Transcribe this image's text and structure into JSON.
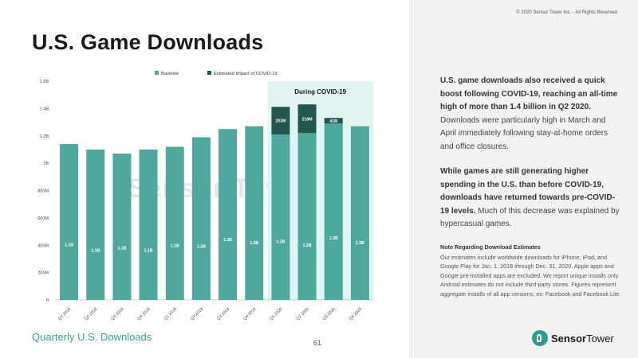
{
  "header": {
    "title": "U.S. Game Downloads",
    "copyright": "© 2020 Sensor Tower Inc. - All Rights Reserved"
  },
  "footer": {
    "label": "Quarterly U.S. Downloads",
    "page_number": "61"
  },
  "panel": {
    "p1_bold": "U.S. game downloads also received a quick boost following COVID-19, reaching an all-time high of more than 1.4 billion in Q2 2020.",
    "p1_rest": " Downloads were particularly high in March and April immediately following stay-at-home orders and office closures.",
    "p2_bold": "While games are still generating higher spending in the U.S. than before COVID-19, downloads have returned towards pre-COVID-19 levels.",
    "p2_rest": " Much of this decrease was explained by hypercasual games.",
    "note_title": "Note Regarding Download Estimates",
    "note_body": "Our estimates include worldwide downloads for iPhone, iPad, and Google Play for Jan. 1, 2018 through Dec. 31, 2020. Apple apps and Google pre-installed apps are excluded. We report unique installs only. Android estimates do not include third-party stores. Figures represent aggregate installs of all app versions, ex: Facebook and Facebook Lite."
  },
  "logo": {
    "brand_a": "Sensor",
    "brand_b": "Tower"
  },
  "chart_data": {
    "type": "bar",
    "stacked": true,
    "categories": [
      "Q1 2018",
      "Q2 2018",
      "Q3 2018",
      "Q4 2018",
      "Q1 2019",
      "Q2 2019",
      "Q3 2019",
      "Q4 2019",
      "Q1 2020",
      "Q2 2020",
      "Q3 2020",
      "Q4 2020"
    ],
    "series": [
      {
        "name": "Baseline",
        "color": "#4ea89d",
        "values": [
          1.14,
          1.1,
          1.07,
          1.1,
          1.12,
          1.19,
          1.25,
          1.27,
          1.21,
          1.22,
          1.29,
          1.27
        ],
        "labels": [
          "1.1B",
          "1.1B",
          "1.1B",
          "1.1B",
          "1.1B",
          "1.2B",
          "1.3B",
          "1.3B",
          "1.2B",
          "1.2B",
          "1.3B",
          "1.3B"
        ]
      },
      {
        "name": "Estimated Impact of COVID-19",
        "color": "#23564f",
        "values": [
          0,
          0,
          0,
          0,
          0,
          0,
          0,
          0,
          0.202,
          0.21,
          0.041,
          0
        ],
        "labels": [
          "",
          "",
          "",
          "",
          "",
          "",
          "",
          "",
          "202M",
          "210M",
          "41M",
          ""
        ]
      }
    ],
    "yticks": [
      "0",
      "200M",
      "400M",
      "600M",
      "800M",
      "1B",
      "1.2B",
      "1.4B",
      "1.6B"
    ],
    "ylim": [
      0,
      1.6
    ],
    "highlight": {
      "label": "During COVID-19",
      "from_index": 8,
      "to_index": 11,
      "color": "#e0f5f2"
    },
    "legend": "top-center"
  }
}
